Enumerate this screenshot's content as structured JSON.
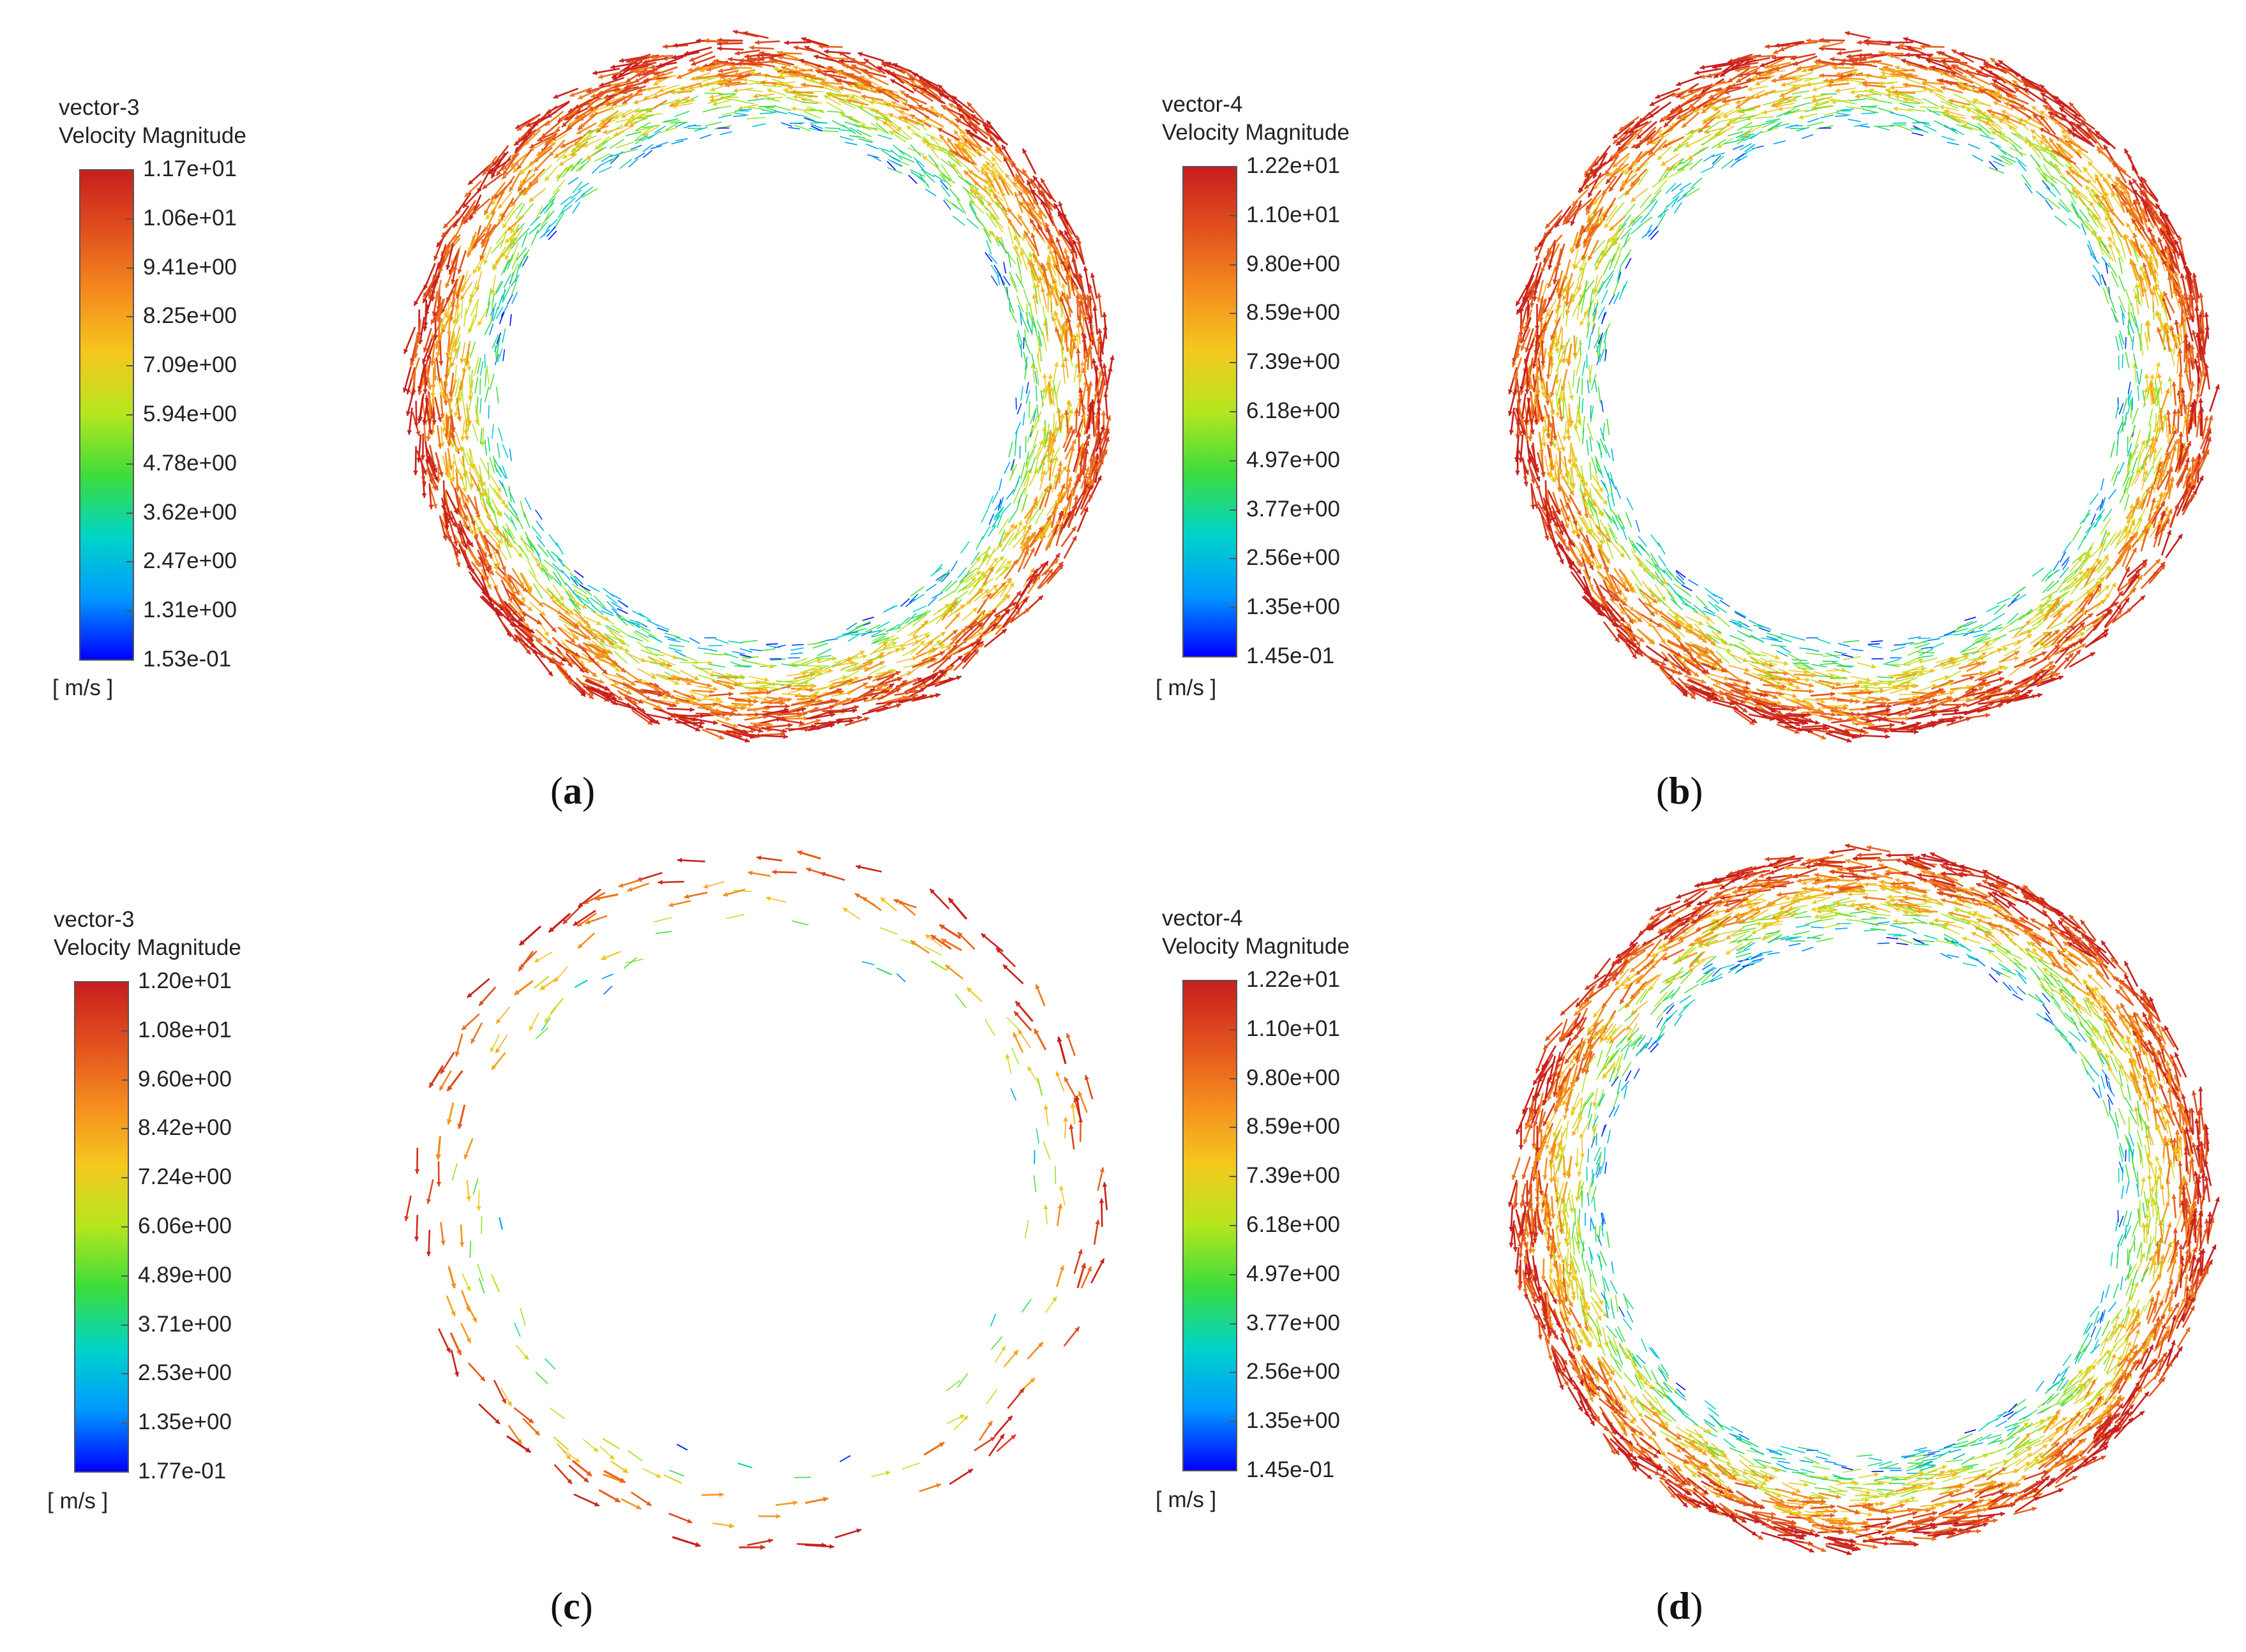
{
  "colormap": [
    "#0000ff",
    "#0099ff",
    "#00d4c8",
    "#3cdc3c",
    "#b4e61e",
    "#f5c81e",
    "#f58c1e",
    "#e1501e",
    "#c81e1e"
  ],
  "panels": [
    {
      "id": "a",
      "caption": "a",
      "legend": {
        "name": "vector-3",
        "quantity": "Velocity Magnitude",
        "unit": "[ m/s ]",
        "ticks": [
          "1.17e+01",
          "1.06e+01",
          "9.41e+00",
          "8.25e+00",
          "7.09e+00",
          "5.94e+00",
          "4.78e+00",
          "3.62e+00",
          "2.47e+00",
          "1.31e+00",
          "1.53e-01"
        ]
      }
    },
    {
      "id": "b",
      "caption": "b",
      "legend": {
        "name": "vector-4",
        "quantity": "Velocity Magnitude",
        "unit": "[ m/s ]",
        "ticks": [
          "1.22e+01",
          "1.10e+01",
          "9.80e+00",
          "8.59e+00",
          "7.39e+00",
          "6.18e+00",
          "4.97e+00",
          "3.77e+00",
          "2.56e+00",
          "1.35e+00",
          "1.45e-01"
        ]
      }
    },
    {
      "id": "c",
      "caption": "c",
      "legend": {
        "name": "vector-3",
        "quantity": "Velocity Magnitude",
        "unit": "[ m/s ]",
        "ticks": [
          "1.20e+01",
          "1.08e+01",
          "9.60e+00",
          "8.42e+00",
          "7.24e+00",
          "6.06e+00",
          "4.89e+00",
          "3.71e+00",
          "2.53e+00",
          "1.35e+00",
          "1.77e-01"
        ]
      }
    },
    {
      "id": "d",
      "caption": "d",
      "legend": {
        "name": "vector-4",
        "quantity": "Velocity Magnitude",
        "unit": "[ m/s ]",
        "ticks": [
          "1.22e+01",
          "1.10e+01",
          "9.80e+00",
          "8.59e+00",
          "7.39e+00",
          "6.18e+00",
          "4.97e+00",
          "3.77e+00",
          "2.56e+00",
          "1.35e+00",
          "1.45e-01"
        ]
      }
    }
  ],
  "chart_data": [
    {
      "type": "vector field",
      "panel": "a",
      "legend_title": [
        "vector-3",
        "Velocity Magnitude"
      ],
      "unit": "[ m/s ]",
      "range": [
        0.153,
        11.7
      ],
      "ticks": [
        11.7,
        10.6,
        9.41,
        8.25,
        7.09,
        5.94,
        4.78,
        3.62,
        2.47,
        1.31,
        0.153
      ],
      "legend_placement": "left",
      "grid": false
    },
    {
      "type": "vector field",
      "panel": "b",
      "legend_title": [
        "vector-4",
        "Velocity Magnitude"
      ],
      "unit": "[ m/s ]",
      "range": [
        0.145,
        12.2
      ],
      "ticks": [
        12.2,
        11.0,
        9.8,
        8.59,
        7.39,
        6.18,
        4.97,
        3.77,
        2.56,
        1.35,
        0.145
      ],
      "legend_placement": "left",
      "grid": false
    },
    {
      "type": "vector field",
      "panel": "c",
      "legend_title": [
        "vector-3",
        "Velocity Magnitude"
      ],
      "unit": "[ m/s ]",
      "range": [
        0.177,
        12.0
      ],
      "ticks": [
        12.0,
        10.8,
        9.6,
        8.42,
        7.24,
        6.06,
        4.89,
        3.71,
        2.53,
        1.35,
        0.177
      ],
      "legend_placement": "left",
      "grid": false
    },
    {
      "type": "vector field",
      "panel": "d",
      "legend_title": [
        "vector-4",
        "Velocity Magnitude"
      ],
      "unit": "[ m/s ]",
      "range": [
        0.145,
        12.2
      ],
      "ticks": [
        12.2,
        11.0,
        9.8,
        8.59,
        7.39,
        6.18,
        4.97,
        3.77,
        2.56,
        1.35,
        0.145
      ],
      "legend_placement": "left",
      "grid": false
    }
  ]
}
